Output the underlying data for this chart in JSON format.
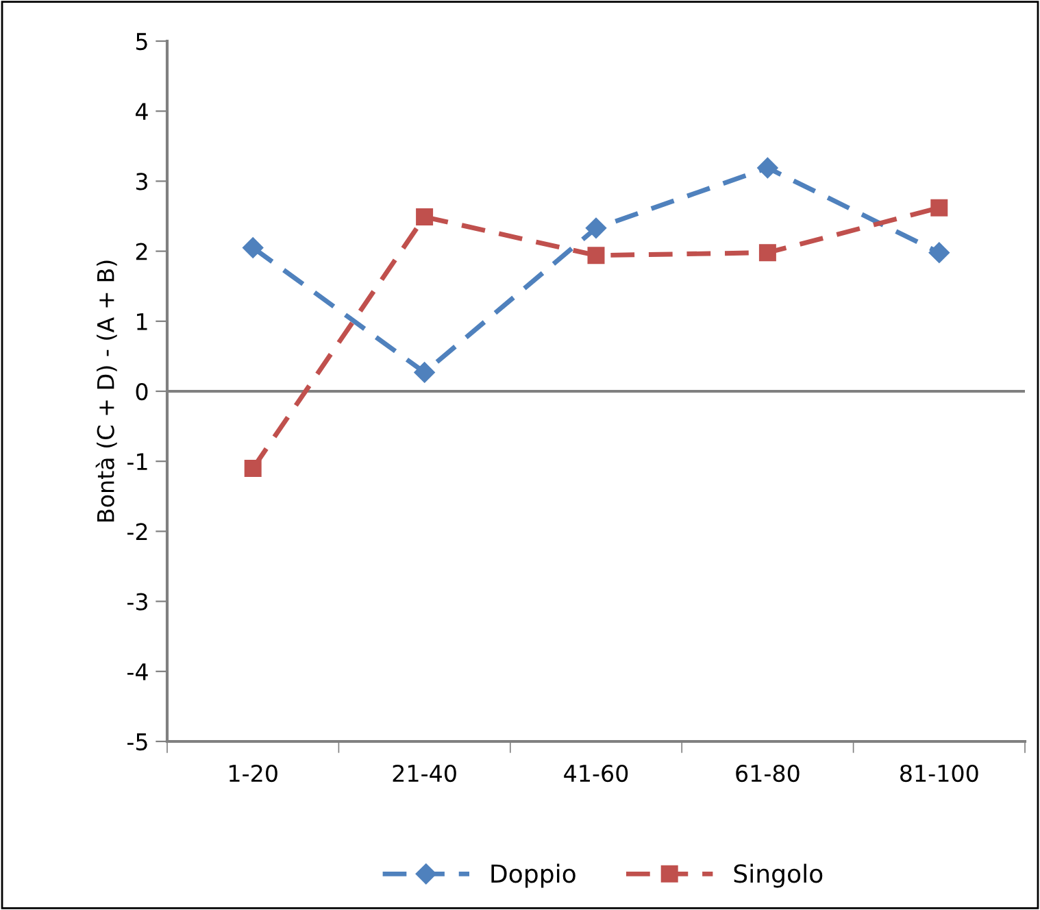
{
  "chart_data": {
    "type": "line",
    "ylabel": "Bontà (C + D) - (A + B)",
    "categories": [
      "1-20",
      "21-40",
      "41-60",
      "61-80",
      "81-100"
    ],
    "series": [
      {
        "name": "Doppio",
        "color": "#4f81bd",
        "values": [
          2.05,
          0.27,
          2.33,
          3.19,
          1.98
        ],
        "marker": "diamond"
      },
      {
        "name": "Singolo",
        "color": "#c0504d",
        "values": [
          -1.1,
          2.49,
          1.94,
          1.98,
          2.62
        ],
        "marker": "square"
      }
    ],
    "ylim": [
      -5,
      5
    ],
    "yticks": [
      -5,
      -4,
      -3,
      -2,
      -1,
      0,
      1,
      2,
      3,
      4,
      5
    ],
    "ref_lines": [
      {
        "axis": "y",
        "value": 0,
        "color": "#808080"
      }
    ],
    "line_style": "dashed",
    "grid": false,
    "legend": "bottom"
  }
}
